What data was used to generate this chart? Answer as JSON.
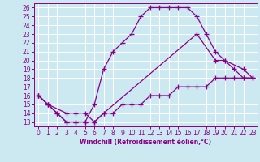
{
  "xlabel": "Windchill (Refroidissement éolien,°C)",
  "bg_color": "#cce8f0",
  "grid_color": "#ffffff",
  "line_color": "#880088",
  "line1_x": [
    0,
    1,
    2,
    3,
    4,
    5,
    6,
    7,
    8,
    9,
    10,
    11,
    12,
    13,
    14,
    15,
    16,
    17,
    18,
    19,
    20,
    21,
    22,
    23
  ],
  "line1_y": [
    16,
    15,
    14,
    13,
    13,
    13,
    15,
    19,
    21,
    22,
    23,
    25,
    26,
    26,
    26,
    26,
    26,
    25,
    23,
    21,
    20,
    19,
    18,
    18
  ],
  "line2_x": [
    0,
    1,
    2,
    3,
    4,
    5,
    6,
    7,
    8,
    9,
    10,
    11,
    12,
    13,
    14,
    15,
    16,
    17,
    18,
    19,
    20,
    21,
    22,
    23
  ],
  "line2_y": [
    16,
    15,
    14,
    13,
    13,
    13,
    13,
    14,
    14,
    15,
    15,
    15,
    16,
    16,
    16,
    17,
    17,
    17,
    17,
    18,
    18,
    18,
    18,
    18
  ],
  "line3_x": [
    0,
    1,
    3,
    4,
    5,
    6,
    7,
    17,
    19,
    20,
    22,
    23
  ],
  "line3_y": [
    16,
    15,
    14,
    14,
    14,
    13,
    14,
    23,
    20,
    20,
    19,
    18
  ],
  "xlim": [
    -0.5,
    23.5
  ],
  "ylim": [
    12.5,
    26.5
  ],
  "xticks": [
    0,
    1,
    2,
    3,
    4,
    5,
    6,
    7,
    8,
    9,
    10,
    11,
    12,
    13,
    14,
    15,
    16,
    17,
    18,
    19,
    20,
    21,
    22,
    23
  ],
  "yticks": [
    13,
    14,
    15,
    16,
    17,
    18,
    19,
    20,
    21,
    22,
    23,
    24,
    25,
    26
  ],
  "tick_fontsize": 5.5,
  "xlabel_fontsize": 5.5
}
